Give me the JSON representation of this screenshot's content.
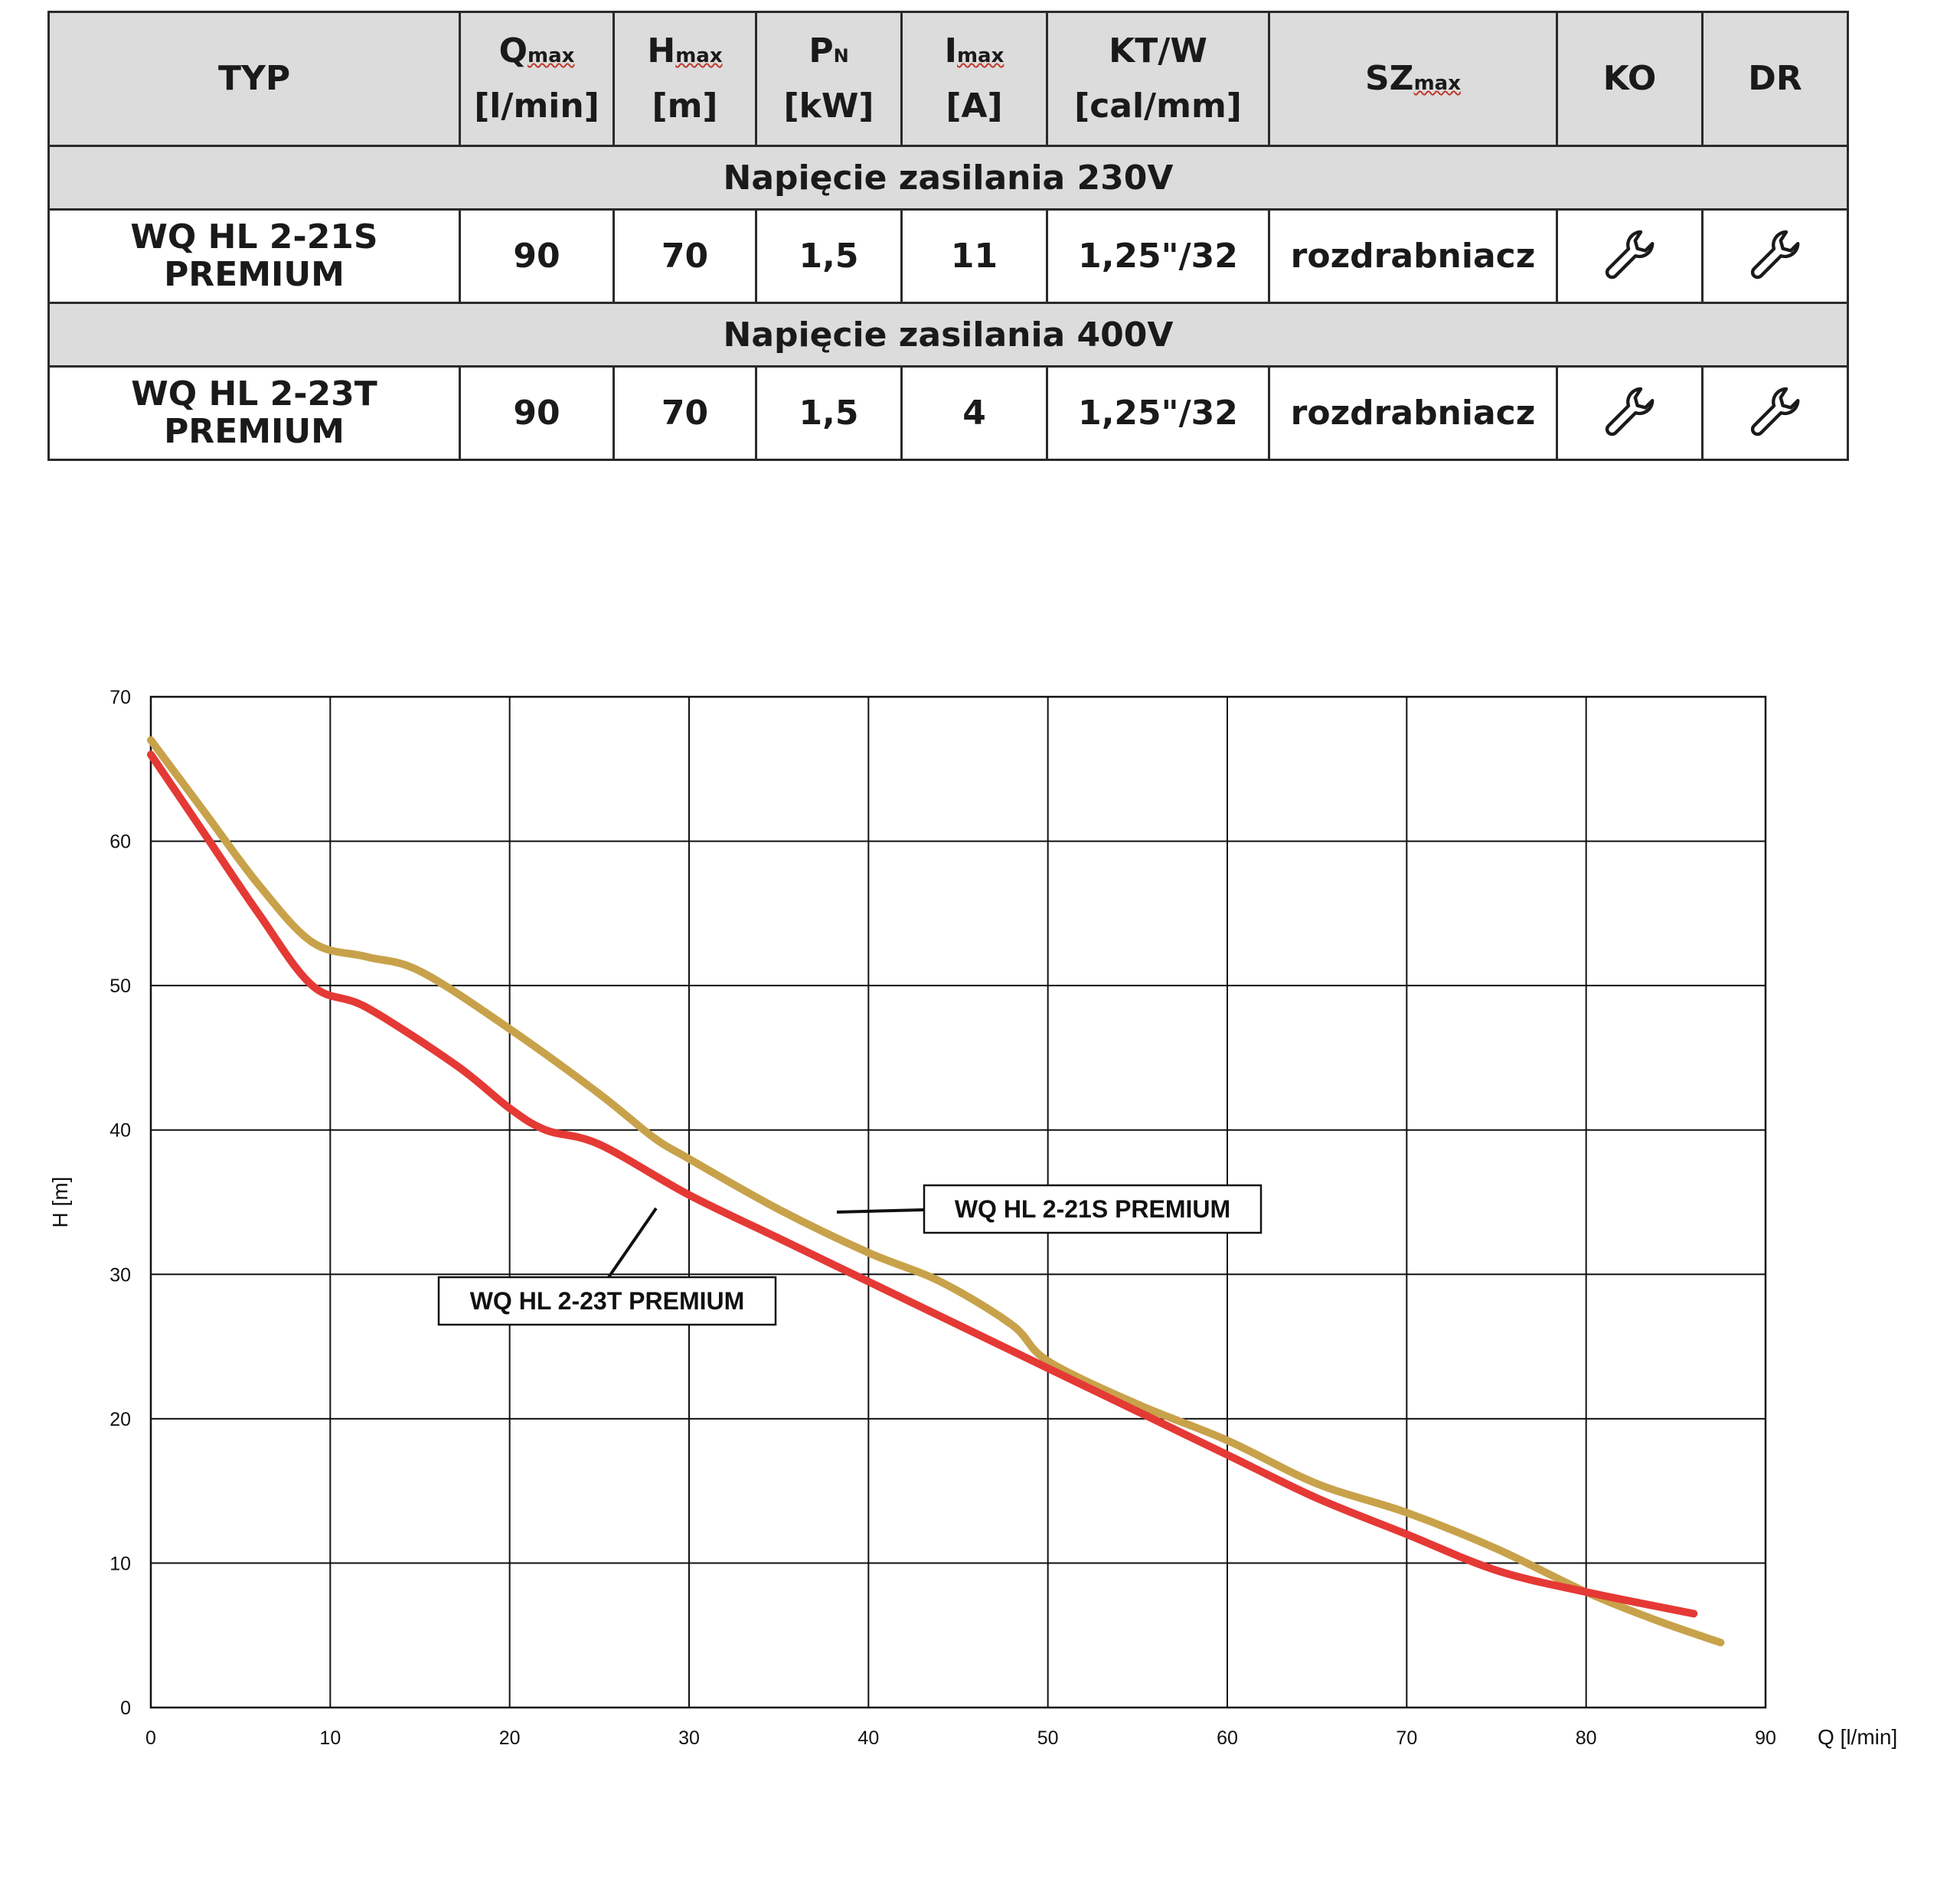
{
  "table": {
    "headers": [
      {
        "main": "TYP"
      },
      {
        "sym": "Q",
        "sub": "max",
        "unit": "[l/min]"
      },
      {
        "sym": "H",
        "sub": "max",
        "unit": "[m]"
      },
      {
        "sym": "P",
        "subn": "N",
        "unit": "[kW]"
      },
      {
        "sym": "I",
        "sub": "max",
        "unit": "[A]"
      },
      {
        "sym": "KT/W",
        "unit": "[cal/mm]"
      },
      {
        "sym": "SZ",
        "sub": "max"
      },
      {
        "main": "KO"
      },
      {
        "main": "DR"
      }
    ],
    "sections": [
      {
        "title": "Napięcie zasilania 230V",
        "row": {
          "typ_line1": "WQ HL 2-21S",
          "typ_line2": "PREMIUM",
          "q": "90",
          "h": "70",
          "p": "1,5",
          "i": "11",
          "ktw": "1,25\"/32",
          "sz": "rozdrabniacz",
          "ko_icon": "wrench-icon",
          "dr_icon": "wrench-icon"
        }
      },
      {
        "title": "Napięcie zasilania 400V",
        "row": {
          "typ_line1": "WQ HL 2-23T",
          "typ_line2": "PREMIUM",
          "q": "90",
          "h": "70",
          "p": "1,5",
          "i": "4",
          "ktw": "1,25\"/32",
          "sz": "rozdrabniacz",
          "ko_icon": "wrench-icon",
          "dr_icon": "wrench-icon"
        }
      }
    ]
  },
  "chart_data": {
    "type": "line",
    "xlabel": "Q [l/min]",
    "ylabel": "H [m]",
    "xlim": [
      0,
      90
    ],
    "ylim": [
      0,
      70
    ],
    "xticks": [
      0,
      10,
      20,
      30,
      40,
      50,
      60,
      70,
      80,
      90
    ],
    "yticks": [
      0,
      10,
      20,
      30,
      40,
      50,
      60,
      70
    ],
    "grid": true,
    "series": [
      {
        "name": "WQ HL 2-21S PREMIUM",
        "color": "#c8a24a",
        "x": [
          0,
          3,
          6,
          9,
          12,
          15,
          20,
          25,
          28,
          30,
          35,
          40,
          44,
          48,
          50,
          55,
          60,
          65,
          70,
          75,
          80,
          84,
          87.5
        ],
        "y": [
          67,
          62,
          57,
          53,
          52,
          51,
          47,
          42.5,
          39.5,
          38,
          34.5,
          31.5,
          29.5,
          26.5,
          24,
          21,
          18.5,
          15.5,
          13.5,
          11,
          8,
          6,
          4.5
        ]
      },
      {
        "name": "WQ HL 2-23T PREMIUM",
        "color": "#e53935",
        "x": [
          0,
          3,
          6,
          9,
          12,
          17,
          20,
          22,
          25,
          30,
          35,
          40,
          45,
          50,
          55,
          60,
          65,
          70,
          75,
          80,
          86
        ],
        "y": [
          66,
          60.5,
          55,
          50,
          48.5,
          44.5,
          41.5,
          40,
          39,
          35.5,
          32.5,
          29.5,
          26.5,
          23.5,
          20.5,
          17.5,
          14.5,
          12,
          9.5,
          8,
          6.5
        ]
      }
    ],
    "annotations": [
      {
        "text": "WQ HL 2-21S PREMIUM",
        "series": 0
      },
      {
        "text": "WQ HL 2-23T PREMIUM",
        "series": 1
      }
    ]
  }
}
